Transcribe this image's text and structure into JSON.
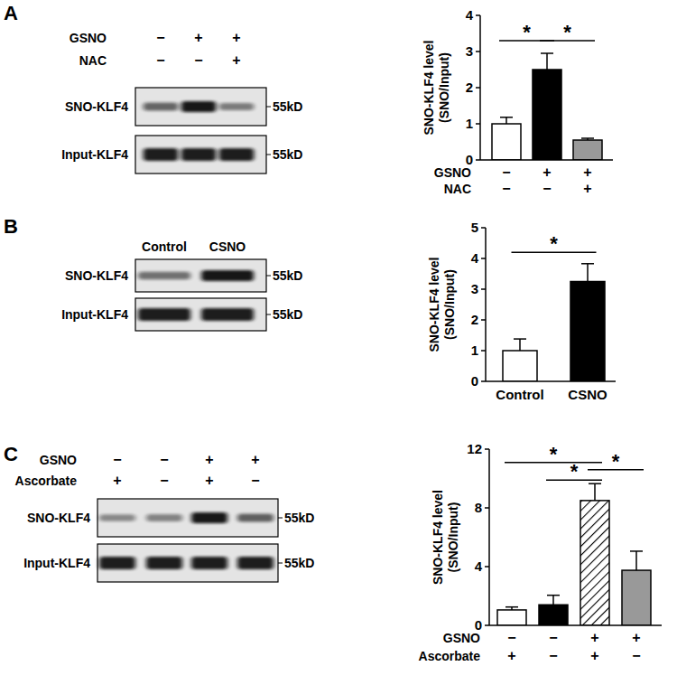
{
  "chart_data": [
    {
      "type": "bar",
      "ylabel": [
        "SNO-KLF4 level",
        "(SNO/Input)"
      ],
      "categories": [
        null,
        null,
        null
      ],
      "condition_rows": [
        {
          "label": "GSNO",
          "marks": [
            "−",
            "+",
            "+"
          ]
        },
        {
          "label": "NAC",
          "marks": [
            "−",
            "−",
            "+"
          ]
        }
      ],
      "values": [
        1.0,
        2.5,
        0.55
      ],
      "errors": [
        0.18,
        0.45,
        0.05
      ],
      "colors": [
        "#ffffff",
        "#000000",
        "#999999"
      ],
      "ylim": [
        0,
        4
      ],
      "yticks": [
        0,
        1,
        2,
        3,
        4
      ],
      "significance": [
        {
          "from": 0,
          "to": 1,
          "y": 3.3,
          "label": "*"
        },
        {
          "from": 1,
          "to": 2,
          "y": 3.3,
          "label": "*"
        }
      ]
    },
    {
      "type": "bar",
      "ylabel": [
        "SNO-KLF4 level",
        "(SNO/Input)"
      ],
      "categories": [
        "Control",
        "CSNO"
      ],
      "values": [
        1.0,
        3.25
      ],
      "errors": [
        0.38,
        0.58
      ],
      "colors": [
        "#ffffff",
        "#000000"
      ],
      "ylim": [
        0,
        5
      ],
      "yticks": [
        0,
        1,
        2,
        3,
        4,
        5
      ],
      "significance": [
        {
          "from": 0,
          "to": 1,
          "y": 4.2,
          "label": "*"
        }
      ]
    },
    {
      "type": "bar",
      "ylabel": [
        "SNO-KLF4 level",
        "(SNO/Input)"
      ],
      "categories": [
        null,
        null,
        null,
        null
      ],
      "condition_rows": [
        {
          "label": "GSNO",
          "marks": [
            "−",
            "−",
            "+",
            "+"
          ]
        },
        {
          "label": "Ascorbate",
          "marks": [
            "+",
            "−",
            "+",
            "−"
          ]
        }
      ],
      "values": [
        1.05,
        1.4,
        8.5,
        3.75
      ],
      "errors": [
        0.2,
        0.65,
        1.15,
        1.3
      ],
      "colors": [
        "#ffffff",
        "#000000",
        "hatch",
        "#999999"
      ],
      "ylim": [
        0,
        12
      ],
      "yticks": [
        0,
        4,
        8,
        12
      ],
      "significance": [
        {
          "from": 0,
          "to": 2,
          "y": 11.1,
          "label": "*"
        },
        {
          "from": 1,
          "to": 2,
          "y": 9.9,
          "label": "*"
        },
        {
          "from": 2,
          "to": 3,
          "y": 10.6,
          "label": "*"
        }
      ]
    }
  ],
  "blots": [
    {
      "panel": "A",
      "conditions": [
        {
          "label": "GSNO",
          "marks": [
            "−",
            "+",
            "+"
          ]
        },
        {
          "label": "NAC",
          "marks": [
            "−",
            "−",
            "+"
          ]
        }
      ],
      "rows": [
        {
          "label": "SNO-KLF4",
          "size_label": "55kD"
        },
        {
          "label": "Input-KLF4",
          "size_label": "55kD"
        }
      ]
    },
    {
      "panel": "B",
      "lanes": [
        "Control",
        "CSNO"
      ],
      "rows": [
        {
          "label": "SNO-KLF4",
          "size_label": "55kD"
        },
        {
          "label": "Input-KLF4",
          "size_label": "55kD"
        }
      ]
    },
    {
      "panel": "C",
      "conditions": [
        {
          "label": "GSNO",
          "marks": [
            "−",
            "−",
            "+",
            "+"
          ]
        },
        {
          "label": "Ascorbate",
          "marks": [
            "+",
            "−",
            "+",
            "−"
          ]
        }
      ],
      "rows": [
        {
          "label": "SNO-KLF4",
          "size_label": "55kD"
        },
        {
          "label": "Input-KLF4",
          "size_label": "55kD"
        }
      ]
    }
  ]
}
